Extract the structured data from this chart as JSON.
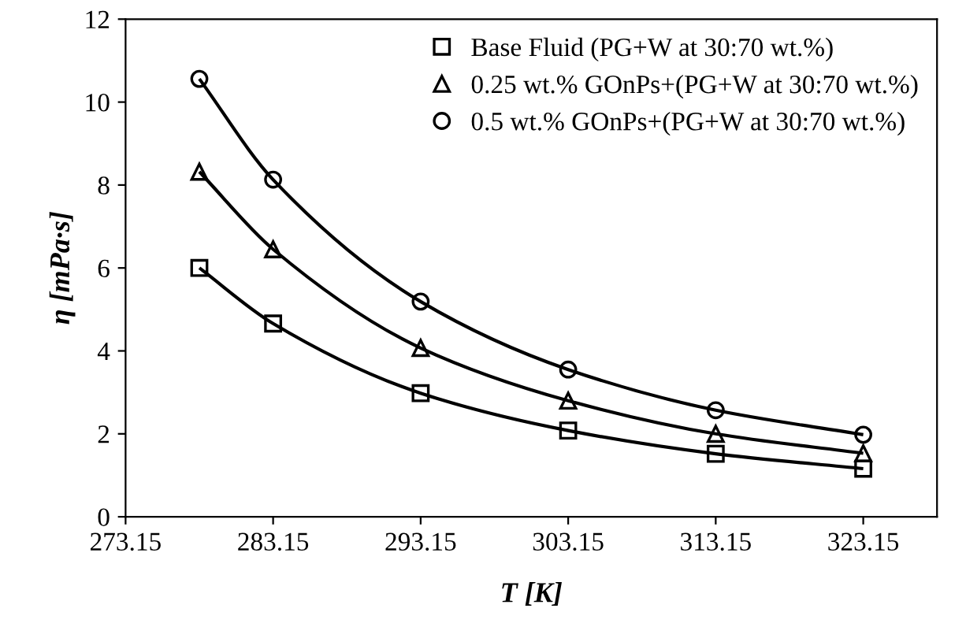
{
  "chart_data": {
    "type": "line",
    "xlabel": "T [K]",
    "ylabel": "η [mPa·s]",
    "x": [
      278.15,
      283.15,
      293.15,
      303.15,
      313.15,
      323.15
    ],
    "series": [
      {
        "name": "Base Fluid (PG+W at 30:70 wt.%)",
        "color": "#000000",
        "marker": "square",
        "values": [
          6.0,
          4.66,
          2.98,
          2.08,
          1.52,
          1.16
        ]
      },
      {
        "name": "0.25 wt.% GOnPs+(PG+W at 30:70 wt.%)",
        "color": "#000000",
        "marker": "triangle",
        "values": [
          8.32,
          6.45,
          4.07,
          2.8,
          2.0,
          1.53
        ]
      },
      {
        "name": "0.5 wt.% GOnPs+(PG+W at 30:70 wt.%)",
        "color": "#000000",
        "marker": "circle",
        "values": [
          10.56,
          8.13,
          5.19,
          3.55,
          2.57,
          1.98
        ]
      }
    ],
    "xlim": [
      273.15,
      328.15
    ],
    "xticks": [
      273.15,
      283.15,
      293.15,
      303.15,
      313.15,
      323.15
    ],
    "ylim": [
      0,
      12
    ],
    "yticks": [
      0,
      2,
      4,
      6,
      8,
      10,
      12
    ],
    "grid": false,
    "legend": "top right",
    "line_style": "solid"
  }
}
